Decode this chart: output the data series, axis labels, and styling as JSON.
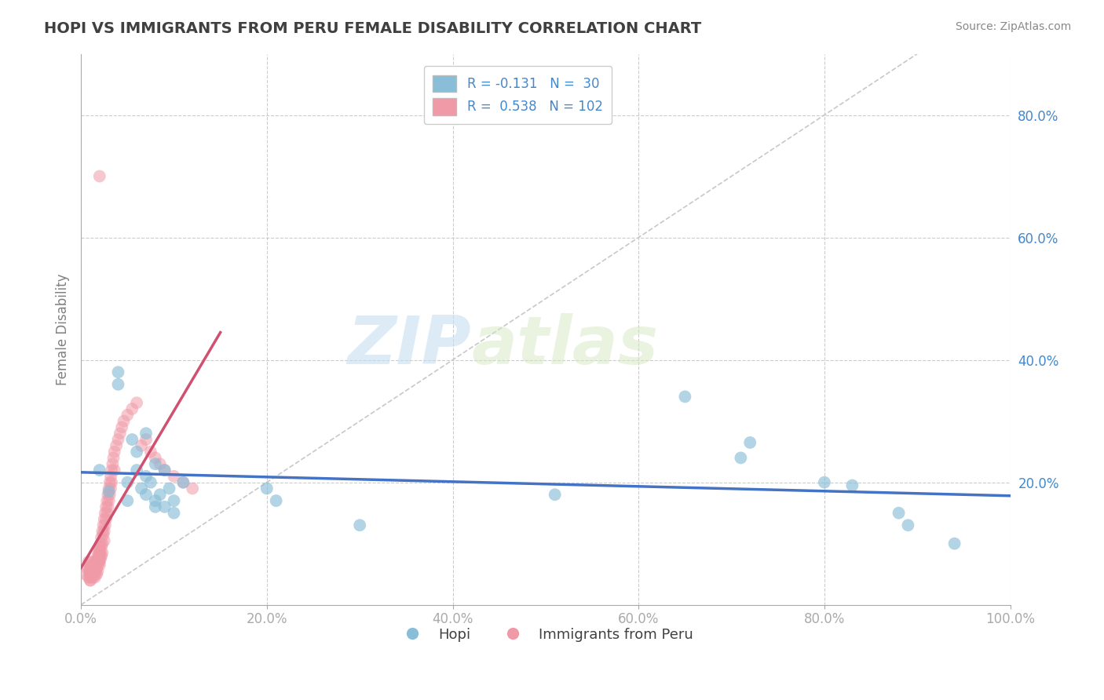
{
  "title": "HOPI VS IMMIGRANTS FROM PERU FEMALE DISABILITY CORRELATION CHART",
  "source": "Source: ZipAtlas.com",
  "ylabel": "Female Disability",
  "xlabel": "",
  "watermark_zip": "ZIP",
  "watermark_atlas": "atlas",
  "xlim": [
    0.0,
    1.0
  ],
  "ylim": [
    0.0,
    0.9
  ],
  "xticks": [
    0.0,
    0.2,
    0.4,
    0.6,
    0.8,
    1.0
  ],
  "yticks_left": [],
  "yticks_right": [
    0.2,
    0.4,
    0.6,
    0.8
  ],
  "yticks_grid": [
    0.2,
    0.4,
    0.6,
    0.8
  ],
  "xtick_labels": [
    "0.0%",
    "20.0%",
    "40.0%",
    "60.0%",
    "80.0%",
    "100.0%"
  ],
  "ytick_labels_right": [
    "20.0%",
    "40.0%",
    "60.0%",
    "80.0%"
  ],
  "hopi_scatter": [
    [
      0.02,
      0.22
    ],
    [
      0.03,
      0.185
    ],
    [
      0.04,
      0.38
    ],
    [
      0.04,
      0.36
    ],
    [
      0.05,
      0.17
    ],
    [
      0.05,
      0.2
    ],
    [
      0.055,
      0.27
    ],
    [
      0.06,
      0.25
    ],
    [
      0.06,
      0.22
    ],
    [
      0.065,
      0.19
    ],
    [
      0.07,
      0.21
    ],
    [
      0.07,
      0.18
    ],
    [
      0.07,
      0.28
    ],
    [
      0.075,
      0.2
    ],
    [
      0.08,
      0.17
    ],
    [
      0.08,
      0.16
    ],
    [
      0.08,
      0.23
    ],
    [
      0.085,
      0.18
    ],
    [
      0.09,
      0.16
    ],
    [
      0.09,
      0.22
    ],
    [
      0.095,
      0.19
    ],
    [
      0.1,
      0.17
    ],
    [
      0.1,
      0.15
    ],
    [
      0.11,
      0.2
    ],
    [
      0.2,
      0.19
    ],
    [
      0.21,
      0.17
    ],
    [
      0.3,
      0.13
    ],
    [
      0.51,
      0.18
    ],
    [
      0.65,
      0.34
    ],
    [
      0.71,
      0.24
    ],
    [
      0.72,
      0.265
    ],
    [
      0.8,
      0.2
    ],
    [
      0.83,
      0.195
    ],
    [
      0.88,
      0.15
    ],
    [
      0.89,
      0.13
    ],
    [
      0.94,
      0.1
    ]
  ],
  "peru_scatter": [
    [
      0.005,
      0.05
    ],
    [
      0.007,
      0.06
    ],
    [
      0.008,
      0.045
    ],
    [
      0.008,
      0.07
    ],
    [
      0.009,
      0.055
    ],
    [
      0.01,
      0.06
    ],
    [
      0.01,
      0.04
    ],
    [
      0.01,
      0.05
    ],
    [
      0.01,
      0.065
    ],
    [
      0.01,
      0.055
    ],
    [
      0.01,
      0.045
    ],
    [
      0.01,
      0.06
    ],
    [
      0.01,
      0.05
    ],
    [
      0.01,
      0.04
    ],
    [
      0.01,
      0.055
    ],
    [
      0.01,
      0.045
    ],
    [
      0.012,
      0.06
    ],
    [
      0.012,
      0.07
    ],
    [
      0.012,
      0.05
    ],
    [
      0.012,
      0.055
    ],
    [
      0.013,
      0.065
    ],
    [
      0.013,
      0.045
    ],
    [
      0.014,
      0.06
    ],
    [
      0.014,
      0.055
    ],
    [
      0.015,
      0.07
    ],
    [
      0.015,
      0.05
    ],
    [
      0.015,
      0.065
    ],
    [
      0.015,
      0.055
    ],
    [
      0.015,
      0.06
    ],
    [
      0.015,
      0.045
    ],
    [
      0.016,
      0.07
    ],
    [
      0.016,
      0.055
    ],
    [
      0.016,
      0.065
    ],
    [
      0.017,
      0.06
    ],
    [
      0.017,
      0.075
    ],
    [
      0.017,
      0.05
    ],
    [
      0.018,
      0.08
    ],
    [
      0.018,
      0.065
    ],
    [
      0.018,
      0.07
    ],
    [
      0.018,
      0.055
    ],
    [
      0.019,
      0.085
    ],
    [
      0.019,
      0.07
    ],
    [
      0.019,
      0.075
    ],
    [
      0.02,
      0.09
    ],
    [
      0.02,
      0.08
    ],
    [
      0.02,
      0.07
    ],
    [
      0.02,
      0.095
    ],
    [
      0.02,
      0.075
    ],
    [
      0.02,
      0.085
    ],
    [
      0.02,
      0.065
    ],
    [
      0.021,
      0.1
    ],
    [
      0.021,
      0.085
    ],
    [
      0.021,
      0.075
    ],
    [
      0.022,
      0.11
    ],
    [
      0.022,
      0.095
    ],
    [
      0.022,
      0.08
    ],
    [
      0.023,
      0.12
    ],
    [
      0.023,
      0.1
    ],
    [
      0.023,
      0.085
    ],
    [
      0.024,
      0.13
    ],
    [
      0.024,
      0.115
    ],
    [
      0.025,
      0.14
    ],
    [
      0.025,
      0.12
    ],
    [
      0.025,
      0.105
    ],
    [
      0.026,
      0.15
    ],
    [
      0.026,
      0.13
    ],
    [
      0.027,
      0.16
    ],
    [
      0.027,
      0.14
    ],
    [
      0.028,
      0.17
    ],
    [
      0.028,
      0.15
    ],
    [
      0.029,
      0.18
    ],
    [
      0.029,
      0.16
    ],
    [
      0.03,
      0.19
    ],
    [
      0.03,
      0.17
    ],
    [
      0.031,
      0.2
    ],
    [
      0.031,
      0.18
    ],
    [
      0.032,
      0.21
    ],
    [
      0.032,
      0.19
    ],
    [
      0.033,
      0.22
    ],
    [
      0.033,
      0.2
    ],
    [
      0.034,
      0.23
    ],
    [
      0.035,
      0.24
    ],
    [
      0.036,
      0.25
    ],
    [
      0.036,
      0.22
    ],
    [
      0.038,
      0.26
    ],
    [
      0.04,
      0.27
    ],
    [
      0.042,
      0.28
    ],
    [
      0.044,
      0.29
    ],
    [
      0.046,
      0.3
    ],
    [
      0.05,
      0.31
    ],
    [
      0.055,
      0.32
    ],
    [
      0.06,
      0.33
    ],
    [
      0.065,
      0.26
    ],
    [
      0.07,
      0.27
    ],
    [
      0.075,
      0.25
    ],
    [
      0.08,
      0.24
    ],
    [
      0.085,
      0.23
    ],
    [
      0.09,
      0.22
    ],
    [
      0.02,
      0.7
    ],
    [
      0.1,
      0.21
    ],
    [
      0.11,
      0.2
    ],
    [
      0.12,
      0.19
    ]
  ],
  "hopi_color": "#89bdd8",
  "peru_color": "#f09aa8",
  "hopi_line_color": "#4472c4",
  "peru_line_color": "#d05070",
  "grid_color": "#cccccc",
  "title_color": "#404040",
  "axis_label_color": "#808080",
  "tick_label_color": "#4488cc",
  "right_tick_color": "#4488cc",
  "background_color": "#ffffff",
  "spine_color": "#aaaaaa"
}
